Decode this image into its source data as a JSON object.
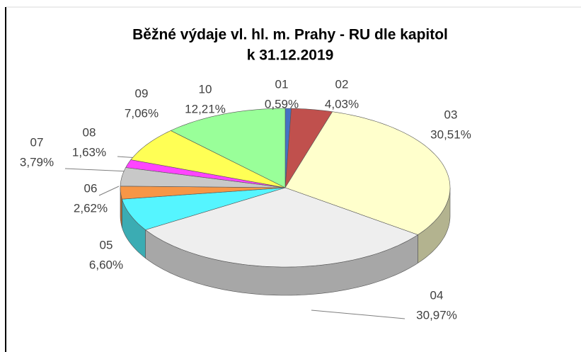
{
  "chart_data": {
    "type": "pie",
    "title": [
      "Běžné výdaje vl. hl. m. Prahy - RU dle kapitol",
      "k 31.12.2019"
    ],
    "categories": [
      "01",
      "02",
      "03",
      "04",
      "05",
      "06",
      "07",
      "08",
      "09",
      "10"
    ],
    "values": [
      0.59,
      4.03,
      30.51,
      30.97,
      6.6,
      2.62,
      3.79,
      1.63,
      7.06,
      12.21
    ],
    "value_labels": [
      "0,59%",
      "4,03%",
      "30,51%",
      "30,97%",
      "6,60%",
      "2,62%",
      "3,79%",
      "1,63%",
      "7,06%",
      "12,21%"
    ],
    "colors": [
      "#4472c4",
      "#c0504d",
      "#ffffcc",
      "#eeeeee",
      "#55f5ff",
      "#f79646",
      "#c8c8c8",
      "#ff44ff",
      "#ffff55",
      "#99ff99"
    ]
  }
}
